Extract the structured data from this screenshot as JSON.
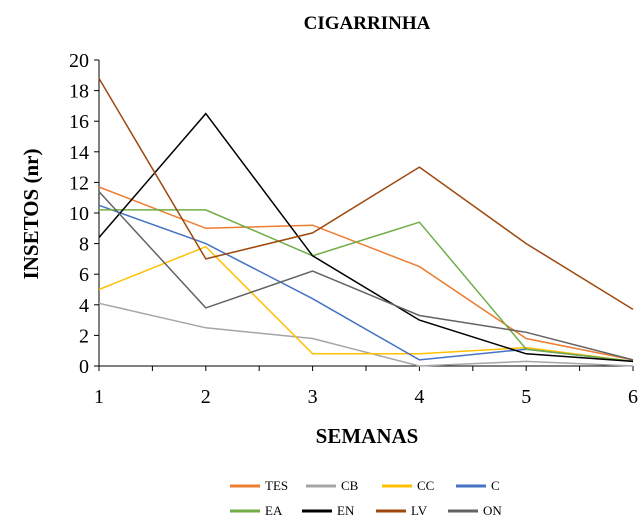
{
  "chart_data": {
    "type": "line",
    "title": "CIGARRINHA",
    "xlabel": "SEMANAS",
    "ylabel": "INSETOS (nr)",
    "x": [
      1,
      2,
      3,
      4,
      5,
      6
    ],
    "xlim": [
      1,
      6
    ],
    "ylim": [
      0,
      20
    ],
    "y_ticks": [
      0,
      2,
      4,
      6,
      8,
      10,
      12,
      14,
      16,
      18,
      20
    ],
    "x_ticks": [
      1,
      2,
      3,
      4,
      5,
      6
    ],
    "grid": false,
    "legend_position": "bottom",
    "series": [
      {
        "name": "TES",
        "color": "#ED7D31",
        "values": [
          11.7,
          9.0,
          9.2,
          6.5,
          1.8,
          0.4
        ]
      },
      {
        "name": "CB",
        "color": "#A5A5A5",
        "values": [
          4.1,
          2.5,
          1.8,
          0.0,
          0.3,
          0.0
        ]
      },
      {
        "name": "CC",
        "color": "#FFC000",
        "values": [
          5.0,
          7.8,
          0.8,
          0.8,
          1.2,
          0.3
        ]
      },
      {
        "name": "C",
        "color": "#4472C4",
        "values": [
          10.5,
          8.0,
          4.4,
          0.4,
          1.1,
          0.3
        ]
      },
      {
        "name": "EA",
        "color": "#70AD47",
        "values": [
          10.2,
          10.2,
          7.2,
          9.4,
          1.1,
          0.3
        ]
      },
      {
        "name": "EN",
        "color": "#000000",
        "values": [
          8.4,
          16.5,
          7.2,
          3.0,
          0.8,
          0.3
        ]
      },
      {
        "name": "LV",
        "color": "#9E480E",
        "values": [
          18.8,
          7.0,
          8.7,
          13.0,
          8.0,
          3.7
        ]
      },
      {
        "name": "ON",
        "color": "#636363",
        "values": [
          11.4,
          3.8,
          6.2,
          3.3,
          2.2,
          0.4
        ]
      }
    ]
  }
}
